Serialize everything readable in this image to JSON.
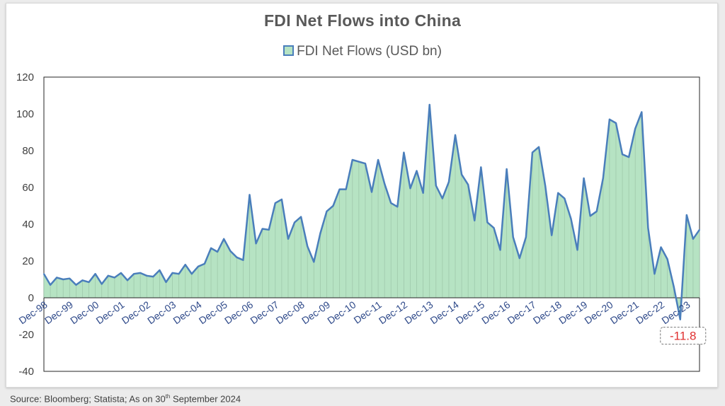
{
  "chart_data": {
    "type": "area",
    "title": "FDI Net Flows into China",
    "legend": "FDI Net Flows (USD bn)",
    "source": {
      "prefix": "Source: Bloomberg; Statista; As on 30",
      "sup": "th",
      "suffix": " September 2024"
    },
    "ylim": [
      -40,
      120
    ],
    "yticks": [
      -40,
      -20,
      0,
      20,
      40,
      60,
      80,
      100,
      120
    ],
    "xlabels": [
      "Dec-98",
      "Dec-99",
      "Dec-00",
      "Dec-01",
      "Dec-02",
      "Dec-03",
      "Dec-04",
      "Dec-05",
      "Dec-06",
      "Dec-07",
      "Dec-08",
      "Dec-09",
      "Dec-10",
      "Dec-11",
      "Dec-12",
      "Dec-13",
      "Dec-14",
      "Dec-15",
      "Dec-16",
      "Dec-17",
      "Dec-18",
      "Dec-19",
      "Dec-20",
      "Dec-21",
      "Dec-22",
      "Dec-23"
    ],
    "values": [
      13,
      7,
      11,
      10,
      10.5,
      7,
      9.5,
      8.5,
      13,
      7.5,
      12,
      11,
      13.5,
      9.5,
      13,
      13.5,
      12,
      11.5,
      15,
      8.5,
      13.5,
      13,
      18,
      13,
      17,
      18.5,
      27,
      25,
      32,
      25.5,
      22,
      20.5,
      56,
      29.5,
      37.5,
      37,
      51.5,
      53.5,
      32,
      41,
      44,
      28,
      19.5,
      35,
      47,
      50,
      59,
      59,
      75,
      74,
      73,
      57.5,
      75,
      62,
      51.5,
      49.5,
      79,
      59.5,
      69,
      57,
      105,
      61,
      54,
      63,
      88.5,
      67,
      61.5,
      42,
      71,
      41,
      38,
      26,
      70,
      33,
      21.5,
      33,
      79,
      82,
      61,
      34,
      57,
      54,
      43,
      26,
      65,
      44.5,
      47,
      65,
      97,
      95,
      78,
      76.5,
      92,
      101,
      38,
      13,
      27.5,
      21,
      6,
      -11.8,
      45,
      32,
      37
    ],
    "annotation": {
      "label": "-11.8",
      "index": 99
    },
    "colors": {
      "line": "#4a7ebb",
      "fill": "#b6e3c3",
      "annotation": "#e03030"
    }
  }
}
